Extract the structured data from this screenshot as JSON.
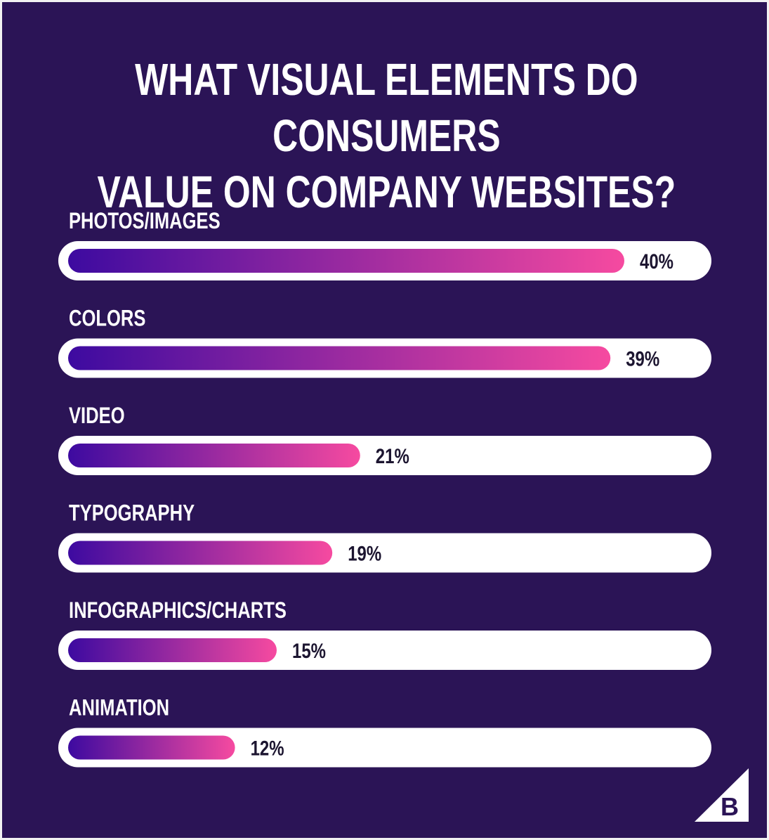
{
  "title_lines": [
    "WHAT VISUAL ELEMENTS DO CONSUMERS",
    "VALUE ON COMPANY WEBSITES?"
  ],
  "colors": {
    "background": "#2b1456",
    "track": "#ffffff",
    "bar_start": "#3d0aa0",
    "bar_end": "#f64aa0",
    "label_text": "#ffffff",
    "value_text": "#1c1530"
  },
  "logo": {
    "letter": "B",
    "icon": "bigcommerce-logo-icon"
  },
  "chart_data": {
    "type": "bar",
    "orientation": "horizontal",
    "categories": [
      "PHOTOS/IMAGES",
      "COLORS",
      "VIDEO",
      "TYPOGRAPHY",
      "INFOGRAPHICS/CHARTS",
      "ANIMATION"
    ],
    "values": [
      40,
      39,
      21,
      19,
      15,
      12
    ],
    "value_labels": [
      "40%",
      "39%",
      "21%",
      "19%",
      "15%",
      "12%"
    ],
    "unit": "%",
    "title": "WHAT VISUAL ELEMENTS DO CONSUMERS VALUE ON COMPANY WEBSITES?",
    "xlabel": "",
    "ylabel": "",
    "grid": false,
    "legend": "none"
  }
}
